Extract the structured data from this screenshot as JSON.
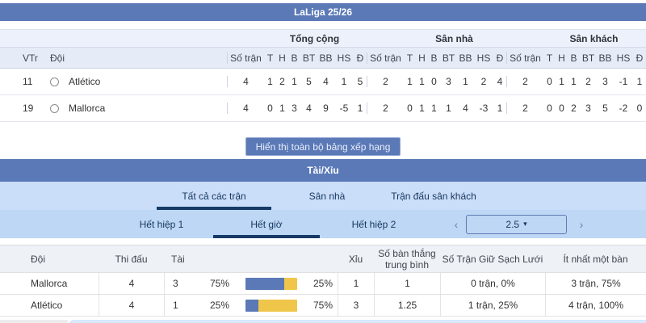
{
  "league_header": {
    "title": "LaLiga 25/26"
  },
  "standings": {
    "rank_col": "VTr",
    "team_col": "Đội",
    "groups": {
      "total": "Tổng cộng",
      "home": "Sân nhà",
      "away": "Sân khách"
    },
    "stat_cols": {
      "mp": "Số trận",
      "w": "T",
      "d": "H",
      "l": "B",
      "gf": "BT",
      "ga": "BB",
      "gd": "HS",
      "pts": "Đ"
    },
    "rows": [
      {
        "rank": "11",
        "team": "Atlético",
        "total": [
          "4",
          "1",
          "2",
          "1",
          "5",
          "4",
          "1",
          "5"
        ],
        "home": [
          "2",
          "1",
          "1",
          "0",
          "3",
          "1",
          "2",
          "4"
        ],
        "away": [
          "2",
          "0",
          "1",
          "1",
          "2",
          "3",
          "-1",
          "1"
        ]
      },
      {
        "rank": "19",
        "team": "Mallorca",
        "total": [
          "4",
          "0",
          "1",
          "3",
          "4",
          "9",
          "-5",
          "1"
        ],
        "home": [
          "2",
          "0",
          "1",
          "1",
          "1",
          "4",
          "-3",
          "1"
        ],
        "away": [
          "2",
          "0",
          "0",
          "2",
          "3",
          "5",
          "-2",
          "0"
        ]
      }
    ]
  },
  "show_all_button": {
    "label": "Hiển thị toàn bộ bảng xếp hạng"
  },
  "over_under": {
    "title": "Tài/Xỉu",
    "venue_tabs": {
      "all": "Tất cả các trận",
      "home": "Sân nhà",
      "away": "Trận đấu sân khách"
    },
    "period_tabs": {
      "ht": "Hết hiệp 1",
      "ft": "Hết giờ",
      "h2": "Hết hiệp 2"
    },
    "line_selector": {
      "prev": "‹",
      "value": "2.5",
      "caret": "▾",
      "next": "›"
    },
    "columns": {
      "team": "Đội",
      "played": "Thi đấu",
      "over": "Tài",
      "under": "Xỉu",
      "avg_goals": "Số bàn thắng trung bình",
      "clean_sheets": "Số Trận Giữ Sạch Lưới",
      "at_least_one": "Ít nhất một bàn"
    },
    "rows": [
      {
        "team": "Mallorca",
        "played": "4",
        "over": "3",
        "over_pct": "75%",
        "over_pct_num": 75,
        "under_pct": "25%",
        "under": "1",
        "avg_goals": "1",
        "clean_sheets": "0 trận, 0%",
        "at_least_one": "3 trận, 75%"
      },
      {
        "team": "Atlético",
        "played": "4",
        "over": "1",
        "over_pct": "25%",
        "over_pct_num": 25,
        "under_pct": "75%",
        "under": "3",
        "avg_goals": "1.25",
        "clean_sheets": "1 trận, 25%",
        "at_least_one": "4 trận, 100%"
      }
    ]
  },
  "colors": {
    "primary_blue": "#5b79b7",
    "tab_bg_light": "#cadef9",
    "tab_bg_dark": "#bdd7f5",
    "active_underline": "#173a66",
    "bar_over": "#5b79b7",
    "bar_under": "#f0c64a"
  }
}
